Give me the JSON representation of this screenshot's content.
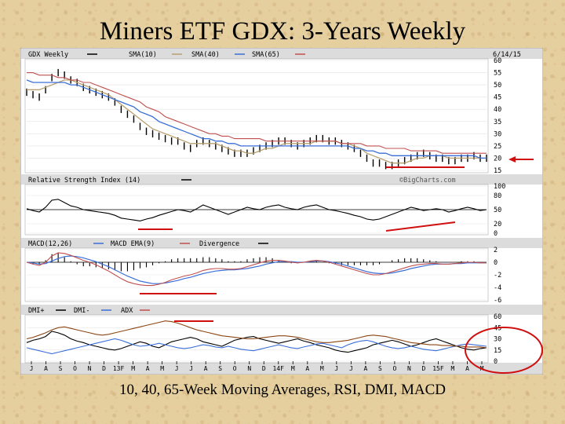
{
  "title": "Miners ETF GDX: 3-Years Weekly",
  "caption": "10, 40, 65-Week Moving Averages, RSI, DMI, MACD",
  "chart_data": {
    "type": "line",
    "date_label": "6/14/15",
    "watermark": "©BigCharts.com",
    "x_ticks": [
      "J",
      "A",
      "S",
      "O",
      "N",
      "D",
      "13F",
      "M",
      "A",
      "M",
      "J",
      "J",
      "A",
      "S",
      "O",
      "N",
      "D",
      "14F",
      "M",
      "A",
      "M",
      "J",
      "J",
      "A",
      "S",
      "O",
      "N",
      "D",
      "15F",
      "M",
      "A",
      "M"
    ],
    "colors": {
      "price": "#000000",
      "sma10": "#b8a070",
      "sma40": "#3a6fd8",
      "sma65": "#c05050",
      "annotation": "#d01010",
      "rsi": "#000000",
      "macd": "#000000",
      "macd_ema": "#3a6fd8",
      "divergence": "#c05050",
      "dmi_plus": "#000000",
      "dmi_minus": "#3a6fd8",
      "adx": "#8b4513"
    },
    "panels": {
      "price": {
        "legend": [
          "GDX Weekly",
          "SMA(10)",
          "SMA(40)",
          "SMA(65)"
        ],
        "ylim": [
          15,
          60
        ],
        "yticks": [
          15,
          20,
          25,
          30,
          35,
          40,
          45,
          50,
          55,
          60
        ],
        "price": [
          47,
          46,
          45,
          48,
          53,
          55,
          54,
          52,
          51,
          49,
          48,
          47,
          46,
          45,
          43,
          40,
          38,
          36,
          33,
          31,
          30,
          29,
          28,
          27,
          27,
          25,
          24,
          26,
          27,
          26,
          25,
          24,
          23,
          22,
          22,
          22,
          23,
          24,
          25,
          26,
          27,
          27,
          26,
          25,
          26,
          27,
          28,
          28,
          27,
          27,
          26,
          25,
          24,
          22,
          20,
          18,
          18,
          17,
          17,
          18,
          19,
          20,
          21,
          22,
          21,
          20,
          20,
          19,
          19,
          20,
          20,
          21,
          20,
          20
        ],
        "sma10": [
          48,
          48,
          48,
          49,
          50,
          51,
          52,
          52,
          51,
          50,
          49,
          48,
          47,
          46,
          44,
          42,
          40,
          38,
          36,
          34,
          32,
          31,
          30,
          29,
          28,
          27,
          26,
          26,
          26,
          26,
          26,
          25,
          24,
          23,
          23,
          22,
          22,
          23,
          24,
          24,
          25,
          26,
          26,
          26,
          26,
          26,
          27,
          27,
          27,
          27,
          26,
          26,
          25,
          24,
          22,
          21,
          20,
          19,
          18,
          18,
          18,
          19,
          20,
          20,
          21,
          21,
          21,
          20,
          20,
          20,
          20,
          20,
          20,
          20
        ],
        "sma40": [
          52,
          51,
          51,
          51,
          51,
          51,
          51,
          50,
          50,
          49,
          48,
          47,
          46,
          45,
          44,
          43,
          42,
          41,
          39,
          38,
          37,
          35,
          34,
          33,
          32,
          31,
          30,
          29,
          28,
          28,
          27,
          27,
          26,
          26,
          25,
          25,
          25,
          25,
          25,
          25,
          25,
          25,
          25,
          25,
          25,
          25,
          25,
          25,
          25,
          25,
          25,
          25,
          24,
          24,
          23,
          23,
          22,
          22,
          21,
          21,
          21,
          21,
          21,
          21,
          21,
          21,
          21,
          21,
          21,
          21,
          21,
          21,
          20,
          20
        ],
        "sma65": [
          55,
          55,
          54,
          54,
          54,
          53,
          53,
          52,
          52,
          51,
          51,
          50,
          49,
          48,
          47,
          46,
          45,
          44,
          43,
          41,
          40,
          39,
          37,
          36,
          35,
          34,
          33,
          32,
          31,
          30,
          30,
          29,
          29,
          28,
          28,
          28,
          28,
          28,
          27,
          27,
          27,
          27,
          27,
          27,
          27,
          27,
          27,
          27,
          27,
          27,
          26,
          26,
          26,
          26,
          25,
          25,
          25,
          24,
          24,
          24,
          24,
          23,
          23,
          23,
          23,
          23,
          22,
          22,
          22,
          22,
          22,
          22,
          22,
          22
        ]
      },
      "rsi": {
        "label": "Relative Strength Index (14)",
        "ylim": [
          0,
          100
        ],
        "yticks": [
          0,
          20,
          50,
          80,
          100
        ],
        "values": [
          52,
          48,
          45,
          55,
          70,
          72,
          65,
          58,
          55,
          50,
          48,
          46,
          44,
          42,
          38,
          32,
          30,
          28,
          26,
          30,
          33,
          38,
          42,
          46,
          50,
          48,
          45,
          52,
          60,
          55,
          50,
          45,
          40,
          45,
          50,
          55,
          52,
          50,
          55,
          58,
          60,
          55,
          52,
          50,
          55,
          58,
          60,
          55,
          50,
          48,
          45,
          42,
          38,
          35,
          30,
          28,
          30,
          35,
          40,
          45,
          50,
          55,
          52,
          48,
          50,
          52,
          50,
          45,
          48,
          52,
          55,
          52,
          48,
          50
        ]
      },
      "macd": {
        "legend": [
          "MACD(12,26)",
          "MACD EMA(9)",
          "Divergence"
        ],
        "ylim": [
          -6,
          2
        ],
        "yticks": [
          2,
          0,
          -2,
          -4,
          -6
        ],
        "macd": [
          0,
          -0.3,
          -0.5,
          0,
          1,
          1.5,
          1.4,
          1.1,
          0.7,
          0.3,
          0,
          -0.4,
          -0.9,
          -1.4,
          -2,
          -2.6,
          -3.1,
          -3.4,
          -3.6,
          -3.7,
          -3.7,
          -3.5,
          -3.2,
          -2.8,
          -2.5,
          -2.2,
          -2,
          -1.7,
          -1.3,
          -1.1,
          -1,
          -1,
          -1.1,
          -1.1,
          -1,
          -0.7,
          -0.4,
          -0.1,
          0.2,
          0.3,
          0.3,
          0.2,
          0,
          -0.1,
          0,
          0.2,
          0.3,
          0.2,
          0,
          -0.3,
          -0.6,
          -0.9,
          -1.2,
          -1.5,
          -1.8,
          -2,
          -2,
          -1.8,
          -1.5,
          -1.2,
          -0.9,
          -0.6,
          -0.4,
          -0.3,
          -0.2,
          -0.2,
          -0.3,
          -0.3,
          -0.2,
          -0.1,
          0,
          0,
          -0.1,
          -0.1
        ],
        "ema": [
          0,
          -0.1,
          -0.3,
          -0.2,
          0.2,
          0.6,
          0.9,
          1,
          0.9,
          0.7,
          0.4,
          0.1,
          -0.3,
          -0.7,
          -1.2,
          -1.7,
          -2.2,
          -2.6,
          -3,
          -3.2,
          -3.4,
          -3.4,
          -3.3,
          -3.1,
          -2.9,
          -2.6,
          -2.4,
          -2.1,
          -1.8,
          -1.6,
          -1.4,
          -1.3,
          -1.2,
          -1.2,
          -1.1,
          -1,
          -0.8,
          -0.6,
          -0.3,
          -0.1,
          0.1,
          0.1,
          0.1,
          0,
          0,
          0.1,
          0.2,
          0.2,
          0.1,
          -0.1,
          -0.3,
          -0.6,
          -0.9,
          -1.2,
          -1.5,
          -1.7,
          -1.8,
          -1.8,
          -1.7,
          -1.5,
          -1.3,
          -1,
          -0.8,
          -0.6,
          -0.4,
          -0.3,
          -0.3,
          -0.3,
          -0.2,
          -0.2,
          -0.1,
          -0.1,
          -0.1,
          -0.1
        ]
      },
      "dmi": {
        "legend": [
          "DMI+",
          "DMI-",
          "ADX"
        ],
        "ylim": [
          0,
          60
        ],
        "yticks": [
          60,
          45,
          30,
          15,
          0
        ],
        "dmi_plus": [
          25,
          28,
          30,
          33,
          40,
          38,
          35,
          30,
          27,
          25,
          22,
          20,
          18,
          16,
          15,
          17,
          20,
          23,
          26,
          24,
          20,
          18,
          22,
          26,
          28,
          30,
          32,
          30,
          26,
          24,
          22,
          20,
          24,
          28,
          30,
          32,
          33,
          30,
          28,
          26,
          24,
          26,
          28,
          30,
          27,
          25,
          22,
          20,
          18,
          15,
          13,
          12,
          14,
          16,
          18,
          22,
          24,
          26,
          28,
          26,
          23,
          20,
          22,
          25,
          28,
          30,
          27,
          24,
          21,
          18,
          16,
          15,
          17,
          18
        ],
        "dmi_minus": [
          18,
          16,
          14,
          12,
          10,
          12,
          14,
          16,
          18,
          20,
          22,
          24,
          26,
          28,
          30,
          28,
          25,
          22,
          20,
          21,
          22,
          24,
          22,
          20,
          18,
          17,
          18,
          20,
          22,
          21,
          19,
          18,
          20,
          18,
          16,
          15,
          14,
          16,
          18,
          20,
          22,
          20,
          18,
          17,
          19,
          21,
          23,
          24,
          22,
          20,
          18,
          22,
          25,
          27,
          28,
          26,
          23,
          20,
          18,
          17,
          18,
          20,
          18,
          16,
          15,
          14,
          16,
          18,
          20,
          22,
          23,
          22,
          21,
          20
        ],
        "adx": [
          30,
          32,
          35,
          38,
          42,
          45,
          46,
          44,
          42,
          40,
          38,
          36,
          35,
          36,
          38,
          40,
          42,
          44,
          46,
          48,
          50,
          52,
          54,
          53,
          51,
          48,
          45,
          42,
          40,
          38,
          36,
          34,
          33,
          32,
          31,
          30,
          30,
          31,
          32,
          33,
          34,
          34,
          33,
          32,
          30,
          28,
          26,
          25,
          25,
          26,
          27,
          28,
          30,
          32,
          34,
          35,
          34,
          33,
          31,
          29,
          27,
          25,
          24,
          23,
          22,
          22,
          21,
          21,
          20,
          20,
          19,
          19,
          19,
          18
        ]
      }
    }
  }
}
